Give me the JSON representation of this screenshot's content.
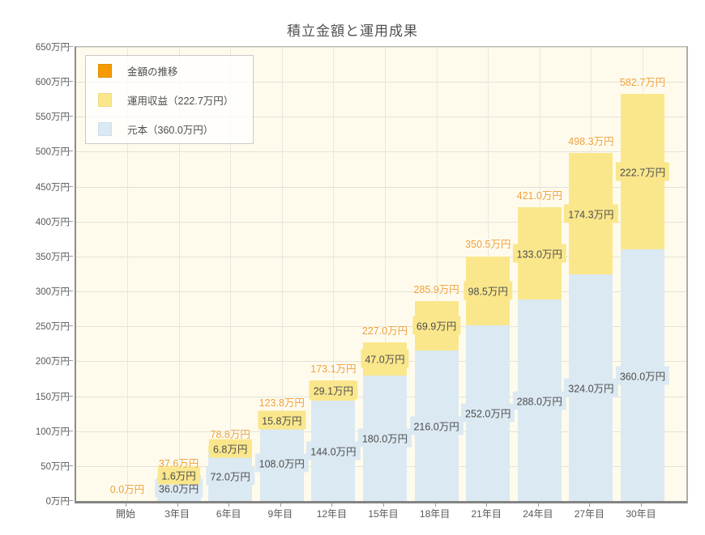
{
  "title": "積立金額と運用成果",
  "legend": {
    "items": [
      {
        "name": "amount-trend",
        "label": "金額の推移",
        "color": "#F59B00",
        "border": "#DD8F00"
      },
      {
        "name": "investment-profit",
        "label": "運用収益（222.7万円）",
        "color": "#FAE78C",
        "border": "#EADB85"
      },
      {
        "name": "principal",
        "label": "元本（360.0万円）",
        "color": "#DBE9F2",
        "border": "#CCDFEB"
      }
    ]
  },
  "chart_data": {
    "type": "bar",
    "stacked": true,
    "title": "積立金額と運用成果",
    "categories": [
      "開始",
      "3年目",
      "6年目",
      "9年目",
      "12年目",
      "15年目",
      "18年目",
      "21年目",
      "24年目",
      "27年目",
      "30年目"
    ],
    "series": [
      {
        "name": "元本",
        "color": "#DBE9F2",
        "values": [
          0,
          36.0,
          72.0,
          108.0,
          144.0,
          180.0,
          216.0,
          252.0,
          288.0,
          324.0,
          360.0
        ],
        "labels": [
          "",
          "36.0万円",
          "72.0万円",
          "108.0万円",
          "144.0万円",
          "180.0万円",
          "216.0万円",
          "252.0万円",
          "288.0万円",
          "324.0万円",
          "360.0万円"
        ]
      },
      {
        "name": "運用収益",
        "color": "#FAE78C",
        "values": [
          0,
          1.6,
          6.8,
          15.8,
          29.1,
          47.0,
          69.9,
          98.5,
          133.0,
          174.3,
          222.7
        ],
        "labels": [
          "",
          "1.6万円",
          "6.8万円",
          "15.8万円",
          "29.1万円",
          "47.0万円",
          "69.9万円",
          "98.5万円",
          "133.0万円",
          "174.3万円",
          "222.7万円"
        ]
      }
    ],
    "totals": {
      "name": "金額の推移",
      "color": "#EFA032",
      "values": [
        0.0,
        37.6,
        78.8,
        123.8,
        173.1,
        227.0,
        285.9,
        350.5,
        421.0,
        498.3,
        582.7
      ],
      "labels": [
        "0.0万円",
        "37.6万円",
        "78.8万円",
        "123.8万円",
        "173.1万円",
        "227.0万円",
        "285.9万円",
        "350.5万円",
        "421.0万円",
        "498.3万円",
        "582.7万円"
      ]
    },
    "y_axis": {
      "min": 0,
      "max": 650,
      "step": 50,
      "unit": "万円",
      "tick_labels": [
        "0万円",
        "50万円",
        "100万円",
        "150万円",
        "200万円",
        "250万円",
        "300万円",
        "350万円",
        "400万円",
        "450万円",
        "500万円",
        "550万円",
        "600万円",
        "650万円"
      ]
    },
    "grid": true,
    "legend_position": "top-left",
    "plot_bg": "#FFFBEC"
  }
}
